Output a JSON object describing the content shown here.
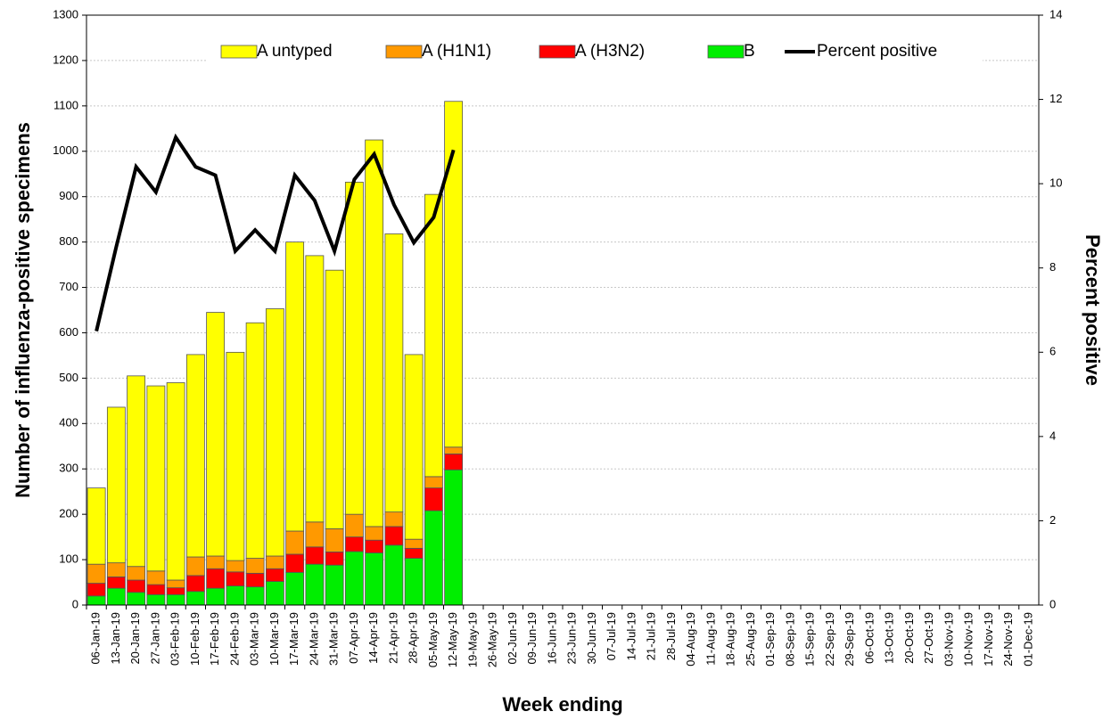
{
  "chart_data": {
    "type": "bar-line",
    "x_label": "Week ending",
    "y_label": "Number of influenza-positive specimens",
    "y2_label": "Percent positive",
    "categories": [
      "06-Jan-19",
      "13-Jan-19",
      "20-Jan-19",
      "27-Jan-19",
      "03-Feb-19",
      "10-Feb-19",
      "17-Feb-19",
      "24-Feb-19",
      "03-Mar-19",
      "10-Mar-19",
      "17-Mar-19",
      "24-Mar-19",
      "31-Mar-19",
      "07-Apr-19",
      "14-Apr-19",
      "21-Apr-19",
      "28-Apr-19",
      "05-May-19",
      "12-May-19",
      "19-May-19",
      "26-May-19",
      "02-Jun-19",
      "09-Jun-19",
      "16-Jun-19",
      "23-Jun-19",
      "30-Jun-19",
      "07-Jul-19",
      "14-Jul-19",
      "21-Jul-19",
      "28-Jul-19",
      "04-Aug-19",
      "11-Aug-19",
      "18-Aug-19",
      "25-Aug-19",
      "01-Sep-19",
      "08-Sep-19",
      "15-Sep-19",
      "22-Sep-19",
      "29-Sep-19",
      "06-Oct-19",
      "13-Oct-19",
      "20-Oct-19",
      "27-Oct-19",
      "03-Nov-19",
      "10-Nov-19",
      "17-Nov-19",
      "24-Nov-19",
      "01-Dec-19"
    ],
    "series": [
      {
        "name": "A untyped",
        "color": "#ffff00",
        "kind": "bar",
        "values": [
          168,
          343,
          420,
          408,
          435,
          446,
          537,
          459,
          519,
          545,
          637,
          587,
          570,
          732,
          852,
          613,
          407,
          622,
          762,
          null,
          null,
          null,
          null,
          null,
          null,
          null,
          null,
          null,
          null,
          null,
          null,
          null,
          null,
          null,
          null,
          null,
          null,
          null,
          null,
          null,
          null,
          null,
          null,
          null,
          null,
          null,
          null,
          null
        ]
      },
      {
        "name": "A (H1N1)",
        "color": "#ff9900",
        "kind": "bar",
        "values": [
          42,
          31,
          30,
          30,
          17,
          41,
          28,
          25,
          33,
          28,
          51,
          55,
          51,
          50,
          30,
          32,
          20,
          25,
          15,
          null,
          null,
          null,
          null,
          null,
          null,
          null,
          null,
          null,
          null,
          null,
          null,
          null,
          null,
          null,
          null,
          null,
          null,
          null,
          null,
          null,
          null,
          null,
          null,
          null,
          null,
          null,
          null,
          null
        ]
      },
      {
        "name": "A (H3N2)",
        "color": "#ff0000",
        "kind": "bar",
        "values": [
          28,
          25,
          27,
          22,
          15,
          35,
          43,
          31,
          30,
          28,
          40,
          38,
          29,
          32,
          28,
          41,
          22,
          50,
          35,
          null,
          null,
          null,
          null,
          null,
          null,
          null,
          null,
          null,
          null,
          null,
          null,
          null,
          null,
          null,
          null,
          null,
          null,
          null,
          null,
          null,
          null,
          null,
          null,
          null,
          null,
          null,
          null,
          null
        ]
      },
      {
        "name": "B",
        "color": "#00ee00",
        "kind": "bar",
        "values": [
          20,
          37,
          28,
          23,
          23,
          30,
          37,
          42,
          40,
          52,
          72,
          90,
          88,
          118,
          115,
          132,
          103,
          208,
          298,
          null,
          null,
          null,
          null,
          null,
          null,
          null,
          null,
          null,
          null,
          null,
          null,
          null,
          null,
          null,
          null,
          null,
          null,
          null,
          null,
          null,
          null,
          null,
          null,
          null,
          null,
          null,
          null,
          null
        ]
      },
      {
        "name": "Percent positive",
        "color": "#000000",
        "kind": "line",
        "axis": "y2",
        "values": [
          6.5,
          8.5,
          10.4,
          9.8,
          11.1,
          10.4,
          10.2,
          8.4,
          8.9,
          8.4,
          10.2,
          9.6,
          8.4,
          10.1,
          10.7,
          9.5,
          8.6,
          9.2,
          10.8,
          null,
          null,
          null,
          null,
          null,
          null,
          null,
          null,
          null,
          null,
          null,
          null,
          null,
          null,
          null,
          null,
          null,
          null,
          null,
          null,
          null,
          null,
          null,
          null,
          null,
          null,
          null,
          null,
          null
        ]
      }
    ],
    "ylim": [
      0,
      1300
    ],
    "yticks": [
      0,
      100,
      200,
      300,
      400,
      500,
      600,
      700,
      800,
      900,
      1000,
      1100,
      1200,
      1300
    ],
    "y2lim": [
      0,
      14
    ],
    "y2ticks": [
      0,
      2,
      4,
      6,
      8,
      10,
      12,
      14
    ],
    "grid": true,
    "legend": "top"
  }
}
